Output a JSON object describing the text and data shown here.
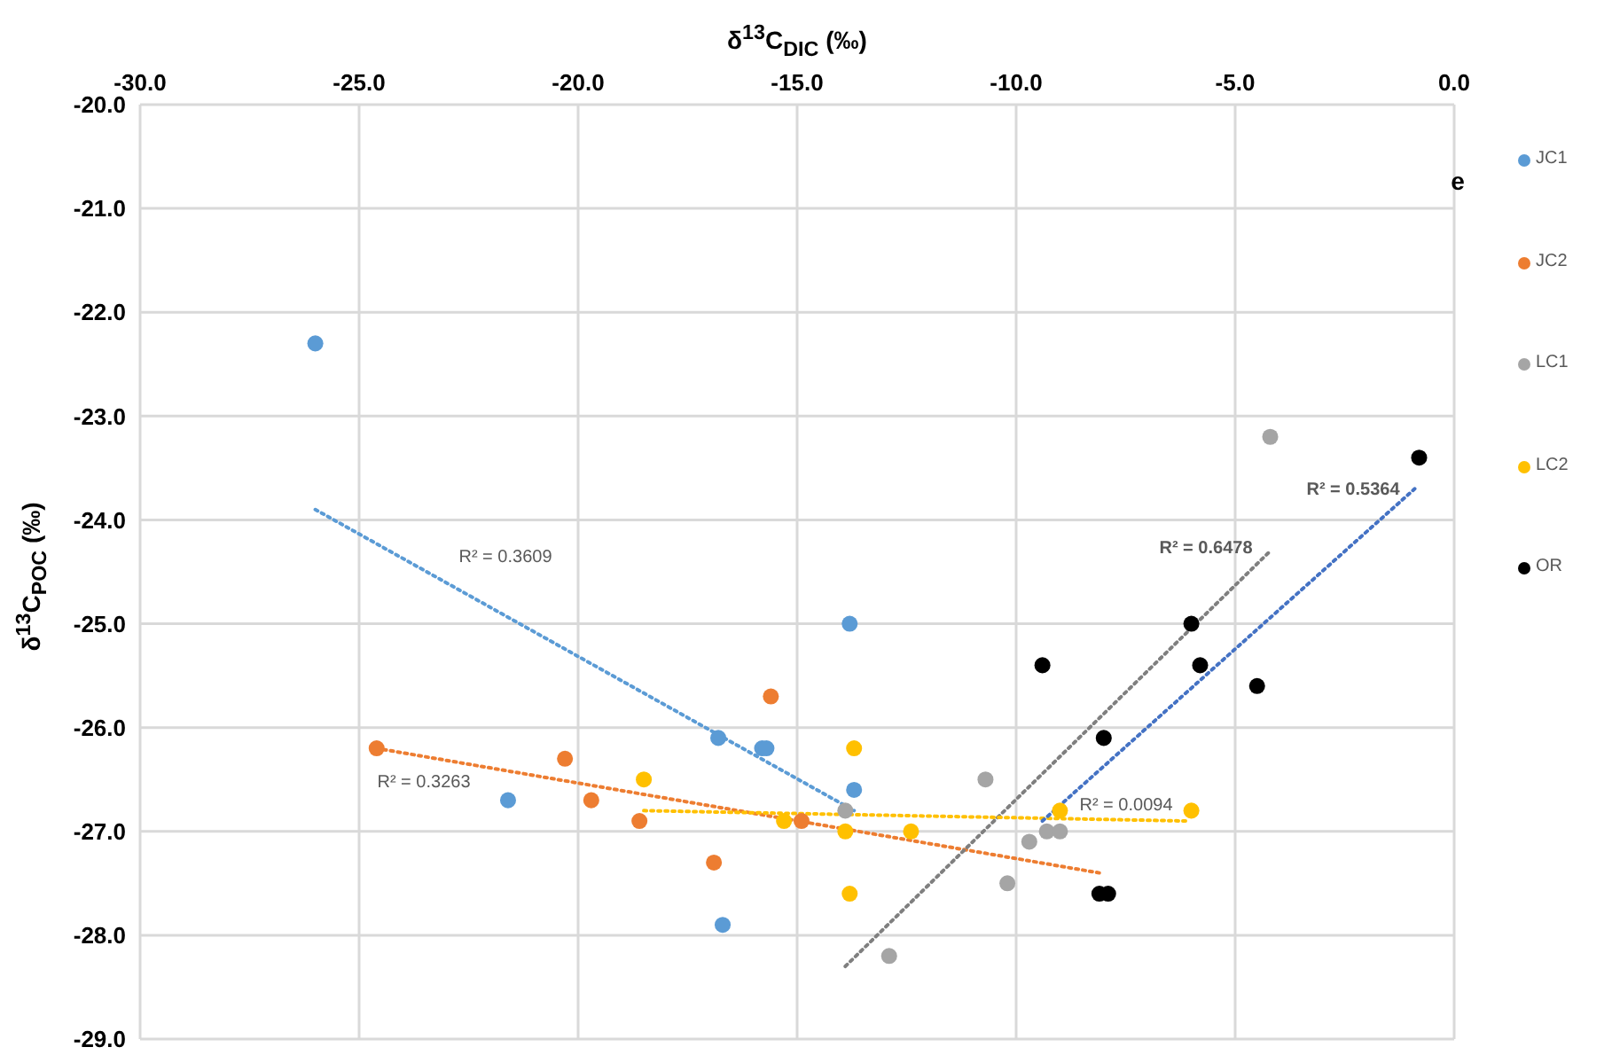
{
  "chart_data": {
    "type": "scatter",
    "xlabel": "δ$^{13}$C$_{DIC}$ (‰)",
    "ylabel": "δ$^{13}$C$_{POC}$ (‰)",
    "xlim": [
      -30,
      0
    ],
    "xticks": [
      {
        "value": -30,
        "label": "-30.0"
      },
      {
        "value": -25,
        "label": "-25.0"
      },
      {
        "value": -20,
        "label": "-20.0"
      },
      {
        "value": -15,
        "label": "-15.0"
      },
      {
        "value": -10,
        "label": "-10.0"
      },
      {
        "value": -5,
        "label": "-5.0"
      },
      {
        "value": 0,
        "label": "0.0"
      }
    ],
    "ylim": [
      -29,
      -20
    ],
    "yticks": [
      {
        "value": -20,
        "label": "-20.0"
      },
      {
        "value": -21,
        "label": "-21.0"
      },
      {
        "value": -22,
        "label": "-22.0"
      },
      {
        "value": -23,
        "label": "-23.0"
      },
      {
        "value": -24,
        "label": "-24.0"
      },
      {
        "value": -25,
        "label": "-25.0"
      },
      {
        "value": -26,
        "label": "-26.0"
      },
      {
        "value": -27,
        "label": "-27.0"
      },
      {
        "value": -28,
        "label": "-28.0"
      },
      {
        "value": -29,
        "label": "-29.0"
      }
    ],
    "grid": true,
    "legend": "right",
    "marker": "circle",
    "line_style": "dotted",
    "series": [
      {
        "name": "JC1",
        "color": "#5b9bd5",
        "x": [
          -26.0,
          -21.6,
          -16.8,
          -15.8,
          -15.7,
          -16.7,
          -13.8,
          -13.7
        ],
        "values": [
          -22.3,
          -26.7,
          -26.1,
          -26.2,
          -26.2,
          -27.9,
          -25.0,
          -26.6
        ]
      },
      {
        "name": "JC2",
        "color": "#ed7d31",
        "x": [
          -24.6,
          -20.3,
          -19.7,
          -18.6,
          -16.9,
          -15.6,
          -14.9
        ],
        "values": [
          -26.2,
          -26.3,
          -26.7,
          -26.9,
          -27.3,
          -25.7,
          -26.9
        ]
      },
      {
        "name": "LC1",
        "color": "#a5a5a5",
        "x": [
          -13.9,
          -10.7,
          -9.7,
          -9.3,
          -9.0,
          -10.2,
          -12.9,
          -4.2
        ],
        "values": [
          -26.8,
          -26.5,
          -27.1,
          -27.0,
          -27.0,
          -27.5,
          -28.2,
          -23.2
        ]
      },
      {
        "name": "LC2",
        "color": "#ffc000",
        "x": [
          -18.5,
          -15.3,
          -13.9,
          -13.7,
          -13.8,
          -12.4,
          -9.0,
          -6.0
        ],
        "values": [
          -26.5,
          -26.9,
          -27.0,
          -26.2,
          -27.6,
          -27.0,
          -26.8,
          -26.8
        ]
      },
      {
        "name": "OR",
        "color": "#000000",
        "x": [
          -9.4,
          -6.0,
          -5.8,
          -4.5,
          -8.0,
          -0.8,
          -8.1,
          -7.9
        ],
        "values": [
          -25.4,
          -25.0,
          -25.4,
          -25.6,
          -26.1,
          -23.4,
          -27.6,
          -27.6
        ]
      },
      {
        "type": "line",
        "color": "#5b9bd5",
        "marker": "none",
        "x": [
          -26.0,
          -13.7
        ],
        "values": [
          -23.9,
          -26.8
        ]
      },
      {
        "type": "line",
        "color": "#ed7d31",
        "marker": "none",
        "x": [
          -24.6,
          -8.1
        ],
        "values": [
          -26.2,
          -27.4
        ]
      },
      {
        "type": "line",
        "color": "#7f7f7f",
        "marker": "none",
        "x": [
          -13.9,
          -4.2
        ],
        "values": [
          -28.3,
          -24.3
        ]
      },
      {
        "type": "line",
        "color": "#ffc000",
        "marker": "none",
        "x": [
          -18.5,
          -6.1
        ],
        "values": [
          -26.8,
          -26.9
        ]
      },
      {
        "type": "line",
        "color": "#4472c4",
        "marker": "none",
        "x": [
          -9.4,
          -0.9
        ],
        "values": [
          -26.9,
          -23.7
        ]
      }
    ],
    "annotations": [
      "e",
      "R² = 0.3609",
      "R² = 0.3263",
      "R² = 0.0094",
      "R² = 0.6478",
      "R² = 0.5364"
    ]
  }
}
